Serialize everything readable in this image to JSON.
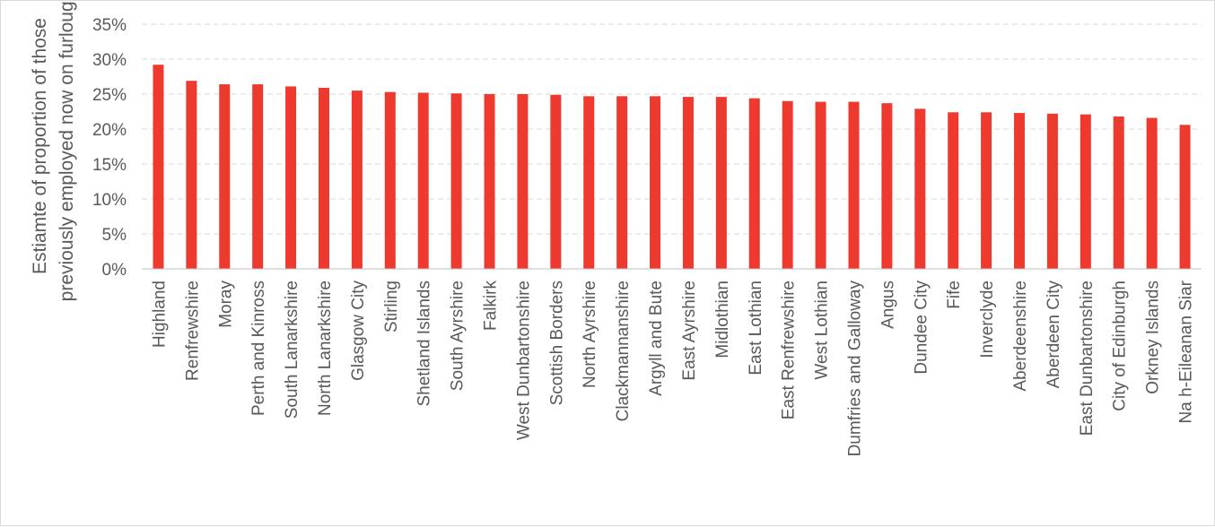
{
  "chart_data": {
    "type": "bar",
    "ylabel_lines": [
      "Estiamte of proportion of those",
      "previously employed now on furlough"
    ],
    "y_tick_labels": [
      "0%",
      "5%",
      "10%",
      "15%",
      "20%",
      "25%",
      "30%",
      "35%"
    ],
    "ylim": [
      0,
      0.35
    ],
    "grid": true,
    "bar_color": "#ee3a2e",
    "categories": [
      "Highland",
      "Renfrewshire",
      "Moray",
      "Perth and Kinross",
      "South Lanarkshire",
      "North Lanarkshire",
      "Glasgow City",
      "Stirling",
      "Shetland Islands",
      "South Ayrshire",
      "Falkirk",
      "West Dunbartonshire",
      "Scottish Borders",
      "North Ayrshire",
      "Clackmannanshire",
      "Argyll and Bute",
      "East Ayrshire",
      "Midlothian",
      "East Lothian",
      "East Renfrewshire",
      "West Lothian",
      "Dumfries and Galloway",
      "Angus",
      "Dundee City",
      "Fife",
      "Inverclyde",
      "Aberdeenshire",
      "Aberdeen City",
      "East Dunbartonshire",
      "City of Edinburgh",
      "Orkney Islands",
      "Na h-Eileanan Siar"
    ],
    "values": [
      0.292,
      0.269,
      0.264,
      0.264,
      0.261,
      0.259,
      0.255,
      0.253,
      0.252,
      0.251,
      0.25,
      0.25,
      0.249,
      0.247,
      0.247,
      0.247,
      0.246,
      0.246,
      0.244,
      0.24,
      0.239,
      0.239,
      0.237,
      0.229,
      0.224,
      0.224,
      0.223,
      0.222,
      0.221,
      0.218,
      0.216,
      0.206
    ]
  }
}
